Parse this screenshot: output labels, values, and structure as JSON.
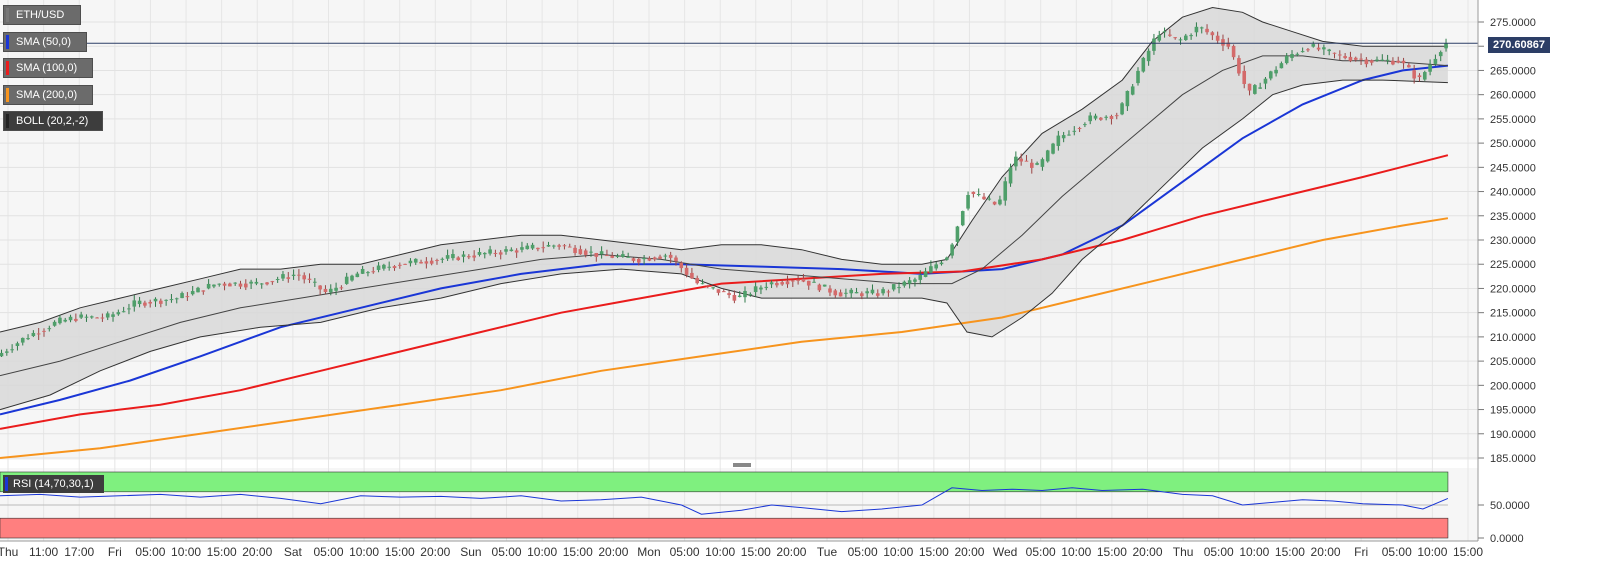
{
  "symbol": "ETH/USD",
  "indicators": [
    {
      "label": "SMA (50,0)",
      "color": "#1a36d6"
    },
    {
      "label": "SMA (100,0)",
      "color": "#ea1c1c"
    },
    {
      "label": "SMA (200,0)",
      "color": "#f7941d"
    },
    {
      "label": "BOLL (20,2,-2)",
      "color": "#222222"
    }
  ],
  "rsi_label": "RSI (14,70,30,1)",
  "current_price": "270.60867",
  "colors": {
    "up": "#4f9f6a",
    "down": "#d46a6a",
    "bands_fill": "#d8d8d8",
    "rsi_line": "#1a36d6",
    "overbought": "#7ff07f",
    "oversold": "#ff7f7f"
  },
  "chart_data": {
    "type": "line",
    "title": "",
    "y_axis": {
      "ticks": [
        "275.0000",
        "270.0000",
        "265.0000",
        "260.0000",
        "255.0000",
        "250.0000",
        "245.0000",
        "240.0000",
        "235.0000",
        "230.0000",
        "225.0000",
        "220.0000",
        "215.0000",
        "210.0000",
        "205.0000",
        "200.0000",
        "195.0000",
        "190.0000",
        "185.0000"
      ],
      "range": [
        184,
        278
      ]
    },
    "rsi_axis": {
      "ticks": [
        "50.0000",
        "0.0000"
      ],
      "range": [
        0,
        100
      ]
    },
    "x_ticks": [
      "Thu",
      "11:00",
      "17:00",
      "Fri",
      "05:00",
      "10:00",
      "15:00",
      "20:00",
      "Sat",
      "05:00",
      "10:00",
      "15:00",
      "20:00",
      "Sun",
      "05:00",
      "10:00",
      "15:00",
      "20:00",
      "Mon",
      "05:00",
      "10:00",
      "15:00",
      "20:00",
      "Tue",
      "05:00",
      "10:00",
      "15:00",
      "20:00",
      "Wed",
      "05:00",
      "10:00",
      "15:00",
      "20:00",
      "Thu",
      "05:00",
      "10:00",
      "15:00",
      "20:00",
      "Fri",
      "05:00",
      "10:00",
      "15:00"
    ],
    "price_path": [
      [
        0,
        206
      ],
      [
        30,
        210
      ],
      [
        60,
        213
      ],
      [
        80,
        214
      ],
      [
        110,
        214
      ],
      [
        140,
        217
      ],
      [
        180,
        218
      ],
      [
        220,
        221
      ],
      [
        260,
        221
      ],
      [
        300,
        223
      ],
      [
        330,
        219
      ],
      [
        360,
        223
      ],
      [
        400,
        225
      ],
      [
        440,
        226
      ],
      [
        480,
        227
      ],
      [
        520,
        228
      ],
      [
        560,
        229
      ],
      [
        600,
        227
      ],
      [
        640,
        226
      ],
      [
        670,
        227
      ],
      [
        700,
        221
      ],
      [
        740,
        218
      ],
      [
        770,
        221
      ],
      [
        800,
        222
      ],
      [
        840,
        219
      ],
      [
        880,
        219
      ],
      [
        920,
        222
      ],
      [
        950,
        227
      ],
      [
        970,
        240
      ],
      [
        1000,
        237
      ],
      [
        1015,
        247
      ],
      [
        1040,
        245
      ],
      [
        1060,
        251
      ],
      [
        1090,
        255
      ],
      [
        1120,
        256
      ],
      [
        1140,
        265
      ],
      [
        1160,
        273
      ],
      [
        1180,
        271
      ],
      [
        1200,
        274
      ],
      [
        1230,
        270
      ],
      [
        1250,
        260
      ],
      [
        1270,
        264
      ],
      [
        1290,
        268
      ],
      [
        1310,
        270
      ],
      [
        1340,
        268
      ],
      [
        1370,
        267
      ],
      [
        1400,
        267
      ],
      [
        1420,
        263
      ],
      [
        1445,
        270.6
      ]
    ],
    "series": [
      {
        "name": "SMA (50,0)",
        "points": [
          [
            0,
            194
          ],
          [
            60,
            197
          ],
          [
            130,
            201
          ],
          [
            200,
            206
          ],
          [
            280,
            212
          ],
          [
            360,
            216
          ],
          [
            440,
            220
          ],
          [
            520,
            223
          ],
          [
            600,
            225
          ],
          [
            680,
            225
          ],
          [
            760,
            224.5
          ],
          [
            840,
            224
          ],
          [
            920,
            223
          ],
          [
            1000,
            224
          ],
          [
            1060,
            227
          ],
          [
            1120,
            233
          ],
          [
            1180,
            242
          ],
          [
            1240,
            251
          ],
          [
            1300,
            258
          ],
          [
            1360,
            263
          ],
          [
            1400,
            265
          ],
          [
            1445,
            266
          ]
        ]
      },
      {
        "name": "SMA (100,0)",
        "points": [
          [
            0,
            191
          ],
          [
            80,
            194
          ],
          [
            160,
            196
          ],
          [
            240,
            199
          ],
          [
            320,
            203
          ],
          [
            400,
            207
          ],
          [
            480,
            211
          ],
          [
            560,
            215
          ],
          [
            640,
            218
          ],
          [
            720,
            221
          ],
          [
            800,
            222
          ],
          [
            880,
            223
          ],
          [
            960,
            223.5
          ],
          [
            1040,
            226
          ],
          [
            1120,
            230
          ],
          [
            1200,
            235
          ],
          [
            1280,
            239
          ],
          [
            1360,
            243
          ],
          [
            1445,
            247.5
          ]
        ]
      },
      {
        "name": "SMA (200,0)",
        "points": [
          [
            0,
            185
          ],
          [
            100,
            187
          ],
          [
            200,
            190
          ],
          [
            300,
            193
          ],
          [
            400,
            196
          ],
          [
            500,
            199
          ],
          [
            600,
            203
          ],
          [
            700,
            206
          ],
          [
            800,
            209
          ],
          [
            900,
            211
          ],
          [
            1000,
            214
          ],
          [
            1080,
            218
          ],
          [
            1160,
            222
          ],
          [
            1240,
            226
          ],
          [
            1320,
            230
          ],
          [
            1400,
            233
          ],
          [
            1445,
            234.5
          ]
        ]
      },
      {
        "name": "BOLL upper",
        "points": [
          [
            0,
            211
          ],
          [
            40,
            213
          ],
          [
            80,
            216
          ],
          [
            120,
            218
          ],
          [
            160,
            220
          ],
          [
            200,
            222
          ],
          [
            240,
            224
          ],
          [
            280,
            224
          ],
          [
            320,
            225
          ],
          [
            360,
            225
          ],
          [
            400,
            227
          ],
          [
            440,
            229
          ],
          [
            480,
            230
          ],
          [
            520,
            231
          ],
          [
            560,
            231
          ],
          [
            600,
            230
          ],
          [
            640,
            229
          ],
          [
            680,
            228
          ],
          [
            720,
            229
          ],
          [
            760,
            229
          ],
          [
            800,
            228
          ],
          [
            840,
            226
          ],
          [
            880,
            225
          ],
          [
            920,
            225
          ],
          [
            945,
            226
          ],
          [
            970,
            234
          ],
          [
            1000,
            243
          ],
          [
            1040,
            252
          ],
          [
            1080,
            257
          ],
          [
            1120,
            263
          ],
          [
            1150,
            271
          ],
          [
            1180,
            276
          ],
          [
            1210,
            278
          ],
          [
            1240,
            277
          ],
          [
            1260,
            275
          ],
          [
            1290,
            273
          ],
          [
            1320,
            271
          ],
          [
            1360,
            270
          ],
          [
            1400,
            270
          ],
          [
            1445,
            270
          ]
        ]
      },
      {
        "name": "BOLL middle",
        "points": [
          [
            0,
            202
          ],
          [
            60,
            205
          ],
          [
            120,
            209
          ],
          [
            180,
            213
          ],
          [
            240,
            216
          ],
          [
            300,
            218
          ],
          [
            360,
            220
          ],
          [
            420,
            222
          ],
          [
            480,
            224
          ],
          [
            540,
            226
          ],
          [
            600,
            227
          ],
          [
            660,
            226
          ],
          [
            720,
            224
          ],
          [
            780,
            223
          ],
          [
            840,
            222
          ],
          [
            900,
            221
          ],
          [
            950,
            221
          ],
          [
            980,
            224
          ],
          [
            1020,
            231
          ],
          [
            1060,
            239
          ],
          [
            1100,
            246
          ],
          [
            1140,
            253
          ],
          [
            1180,
            260
          ],
          [
            1220,
            265
          ],
          [
            1260,
            268
          ],
          [
            1300,
            268
          ],
          [
            1340,
            267
          ],
          [
            1380,
            267
          ],
          [
            1445,
            266
          ]
        ]
      },
      {
        "name": "BOLL lower",
        "points": [
          [
            0,
            195
          ],
          [
            50,
            198
          ],
          [
            100,
            203
          ],
          [
            150,
            207
          ],
          [
            200,
            210
          ],
          [
            260,
            212
          ],
          [
            320,
            213
          ],
          [
            380,
            216
          ],
          [
            440,
            218
          ],
          [
            500,
            221
          ],
          [
            560,
            223
          ],
          [
            620,
            224
          ],
          [
            680,
            223
          ],
          [
            720,
            220
          ],
          [
            760,
            218
          ],
          [
            800,
            218
          ],
          [
            840,
            218
          ],
          [
            880,
            218
          ],
          [
            920,
            218
          ],
          [
            945,
            217
          ],
          [
            965,
            211
          ],
          [
            990,
            210
          ],
          [
            1020,
            214
          ],
          [
            1050,
            219
          ],
          [
            1080,
            226
          ],
          [
            1120,
            233
          ],
          [
            1160,
            241
          ],
          [
            1200,
            249
          ],
          [
            1240,
            255
          ],
          [
            1270,
            260
          ],
          [
            1300,
            262
          ],
          [
            1340,
            263
          ],
          [
            1380,
            263
          ],
          [
            1445,
            262.5
          ]
        ]
      }
    ],
    "rsi": [
      [
        0,
        64
      ],
      [
        40,
        66
      ],
      [
        80,
        62
      ],
      [
        120,
        64
      ],
      [
        160,
        66
      ],
      [
        200,
        62
      ],
      [
        240,
        66
      ],
      [
        280,
        60
      ],
      [
        320,
        52
      ],
      [
        360,
        64
      ],
      [
        400,
        62
      ],
      [
        440,
        63
      ],
      [
        480,
        60
      ],
      [
        520,
        64
      ],
      [
        560,
        56
      ],
      [
        600,
        58
      ],
      [
        640,
        62
      ],
      [
        680,
        50
      ],
      [
        700,
        36
      ],
      [
        740,
        42
      ],
      [
        770,
        50
      ],
      [
        800,
        46
      ],
      [
        840,
        40
      ],
      [
        880,
        44
      ],
      [
        920,
        50
      ],
      [
        950,
        76
      ],
      [
        980,
        72
      ],
      [
        1010,
        74
      ],
      [
        1040,
        72
      ],
      [
        1070,
        76
      ],
      [
        1100,
        72
      ],
      [
        1140,
        74
      ],
      [
        1180,
        66
      ],
      [
        1210,
        64
      ],
      [
        1240,
        50
      ],
      [
        1270,
        54
      ],
      [
        1300,
        58
      ],
      [
        1330,
        56
      ],
      [
        1360,
        52
      ],
      [
        1400,
        50
      ],
      [
        1420,
        44
      ],
      [
        1445,
        60
      ]
    ]
  }
}
